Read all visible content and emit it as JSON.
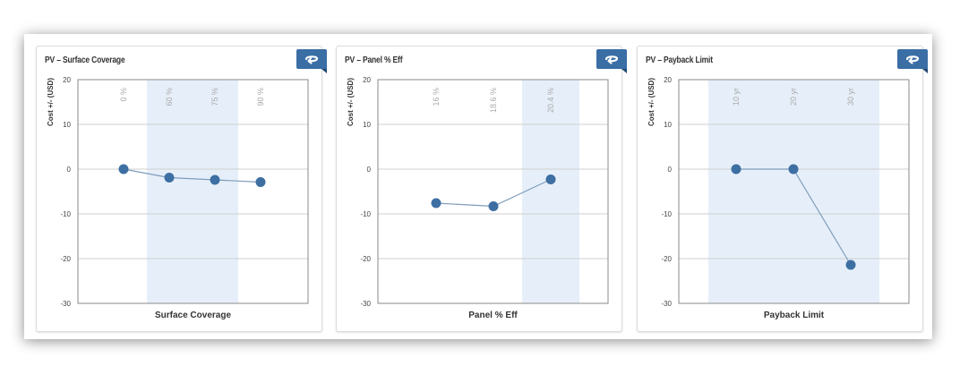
{
  "colors": {
    "accent": "#3a6ea5",
    "point": "#3d6fa3",
    "line": "#7f9cbc",
    "band": "#e6eff9",
    "grid": "#cfcfcf",
    "axis_border": "#888888"
  },
  "panels": [
    {
      "title": "PV – Surface Coverage",
      "reset_icon": "reset-arrow-icon"
    },
    {
      "title": "PV – Panel % Eff",
      "reset_icon": "reset-arrow-icon"
    },
    {
      "title": "PV – Payback Limit",
      "reset_icon": "reset-arrow-icon"
    }
  ],
  "chart_data": [
    {
      "type": "line",
      "title": "PV – Surface Coverage",
      "xlabel": "Surface Coverage",
      "ylabel": "Cost +/- (USD)",
      "categories": [
        "0 %",
        "60 %",
        "75 %",
        "90 %"
      ],
      "values": [
        0,
        -1.9,
        -2.4,
        -2.9
      ],
      "highlighted_categories": [
        "60 %",
        "75 %"
      ],
      "ylim": [
        -30,
        20
      ],
      "yticks": [
        20,
        10,
        0,
        -10,
        -20,
        -30
      ],
      "grid": true,
      "legend": null
    },
    {
      "type": "line",
      "title": "PV – Panel % Eff",
      "xlabel": "Panel % Eff",
      "ylabel": "Cost +/- (USD)",
      "categories": [
        "16 %",
        "18.6 %",
        "20.4 %"
      ],
      "values": [
        -7.6,
        -8.3,
        -2.3
      ],
      "highlighted_categories": [
        "20.4 %"
      ],
      "ylim": [
        -30,
        20
      ],
      "yticks": [
        20,
        10,
        0,
        -10,
        -20,
        -30
      ],
      "grid": true,
      "legend": null
    },
    {
      "type": "line",
      "title": "PV – Payback Limit",
      "xlabel": "Payback Limit",
      "ylabel": "Cost +/- (USD)",
      "categories": [
        "10 yr",
        "20 yr",
        "30 yr"
      ],
      "values": [
        0,
        0,
        -21.4
      ],
      "highlighted_categories": [
        "10 yr",
        "20 yr",
        "30 yr"
      ],
      "ylim": [
        -30,
        20
      ],
      "yticks": [
        20,
        10,
        0,
        -10,
        -20,
        -30
      ],
      "grid": true,
      "legend": null
    }
  ]
}
